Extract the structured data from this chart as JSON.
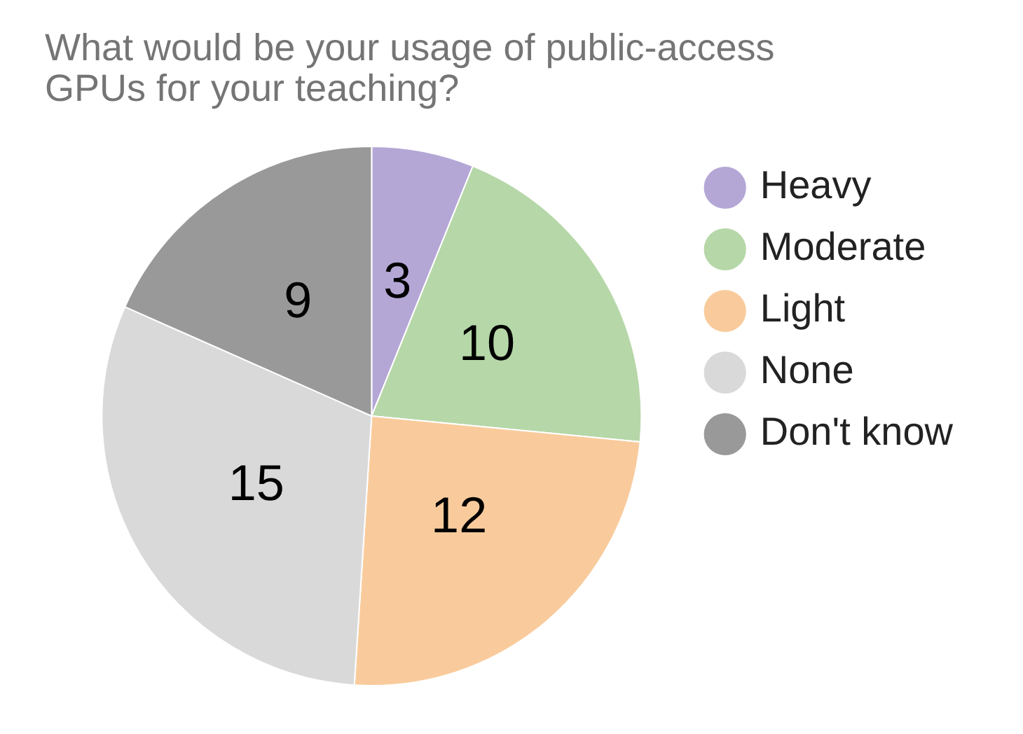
{
  "chart_data": {
    "type": "pie",
    "title": "What would be your usage of public-access GPUs for your teaching?",
    "categories": [
      "Heavy",
      "Moderate",
      "Light",
      "None",
      "Don't know"
    ],
    "values": [
      3,
      10,
      12,
      15,
      9
    ],
    "colors": [
      "#b4a7d6",
      "#b6d7a8",
      "#f9cb9c",
      "#d9d9d9",
      "#999999"
    ],
    "data_labels": true,
    "legend": "right"
  }
}
